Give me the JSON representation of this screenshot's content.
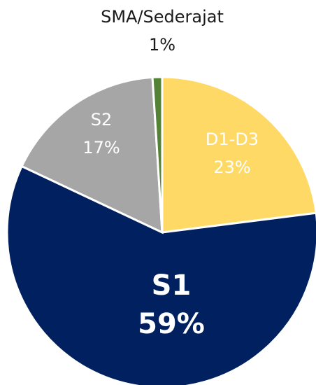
{
  "chart_data": {
    "type": "pie",
    "categories": [
      "D1-D3",
      "S1",
      "S2",
      "SMA/Sederajat"
    ],
    "values": [
      23,
      59,
      17,
      1
    ],
    "value_labels": [
      "23%",
      "59%",
      "17%",
      "1%"
    ],
    "colors": [
      "#FFD966",
      "#002060",
      "#A6A6A6",
      "#548235"
    ],
    "label_colors": [
      "#ffffff",
      "#ffffff",
      "#ffffff",
      "#1a1a1a"
    ]
  }
}
